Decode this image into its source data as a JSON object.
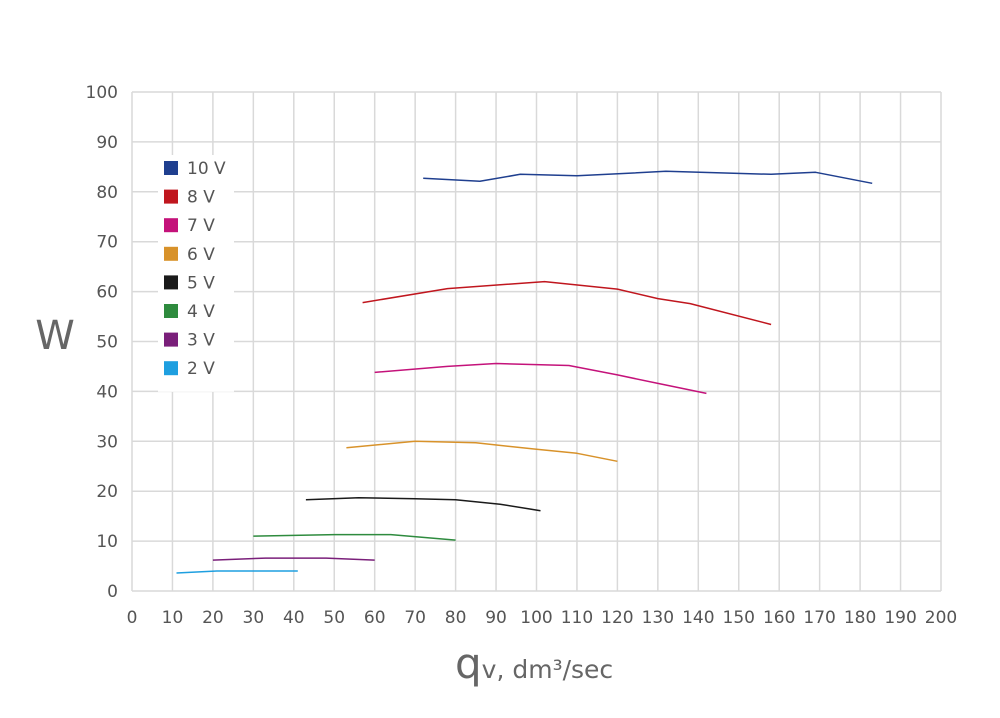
{
  "chart_data": {
    "type": "line",
    "title": "",
    "ylabel": "W",
    "xlabel": {
      "main": "q",
      "subscript": "v",
      "unit": ", dm³/sec"
    },
    "xlim": [
      0,
      200
    ],
    "ylim": [
      0,
      100
    ],
    "x_ticks": [
      "0",
      "10",
      "20",
      "30",
      "40",
      "50",
      "60",
      "70",
      "80",
      "90",
      "100",
      "110",
      "120",
      "130",
      "140",
      "150",
      "160",
      "170",
      "180",
      "190",
      "200"
    ],
    "y_ticks": [
      "0",
      "10",
      "20",
      "30",
      "40",
      "50",
      "60",
      "70",
      "80",
      "90",
      "100"
    ],
    "grid": true,
    "legend_position": "top-left",
    "series": [
      {
        "name": "10 V",
        "color": "#1f3f8f",
        "x": [
          72,
          86,
          96,
          110,
          132,
          158,
          169,
          183
        ],
        "y": [
          82.7,
          82.1,
          83.5,
          83.2,
          84.1,
          83.5,
          83.9,
          81.7
        ]
      },
      {
        "name": "8 V",
        "color": "#c0161e",
        "x": [
          57,
          78,
          102,
          120,
          130,
          138,
          158
        ],
        "y": [
          57.8,
          60.6,
          62.0,
          60.5,
          58.6,
          57.6,
          53.4
        ]
      },
      {
        "name": "7 V",
        "color": "#c4127a",
        "x": [
          60,
          78,
          90,
          108,
          120,
          130,
          142
        ],
        "y": [
          43.8,
          45.0,
          45.6,
          45.2,
          43.3,
          41.6,
          39.6
        ]
      },
      {
        "name": "6 V",
        "color": "#d8922a",
        "x": [
          53,
          70,
          85,
          100,
          110,
          120
        ],
        "y": [
          28.7,
          30.0,
          29.7,
          28.4,
          27.6,
          26.0
        ]
      },
      {
        "name": "5 V",
        "color": "#1a1a1a",
        "x": [
          43,
          56,
          70,
          80,
          91,
          101
        ],
        "y": [
          18.3,
          18.7,
          18.5,
          18.3,
          17.4,
          16.1
        ]
      },
      {
        "name": "4 V",
        "color": "#2e8b3e",
        "x": [
          30,
          50,
          64,
          80
        ],
        "y": [
          11.0,
          11.3,
          11.3,
          10.2
        ]
      },
      {
        "name": "3 V",
        "color": "#7a1f7a",
        "x": [
          20,
          33,
          48,
          60
        ],
        "y": [
          6.2,
          6.6,
          6.6,
          6.2
        ]
      },
      {
        "name": "2 V",
        "color": "#1e9fe0",
        "x": [
          11,
          21,
          41
        ],
        "y": [
          3.6,
          4.0,
          4.0
        ]
      }
    ]
  }
}
